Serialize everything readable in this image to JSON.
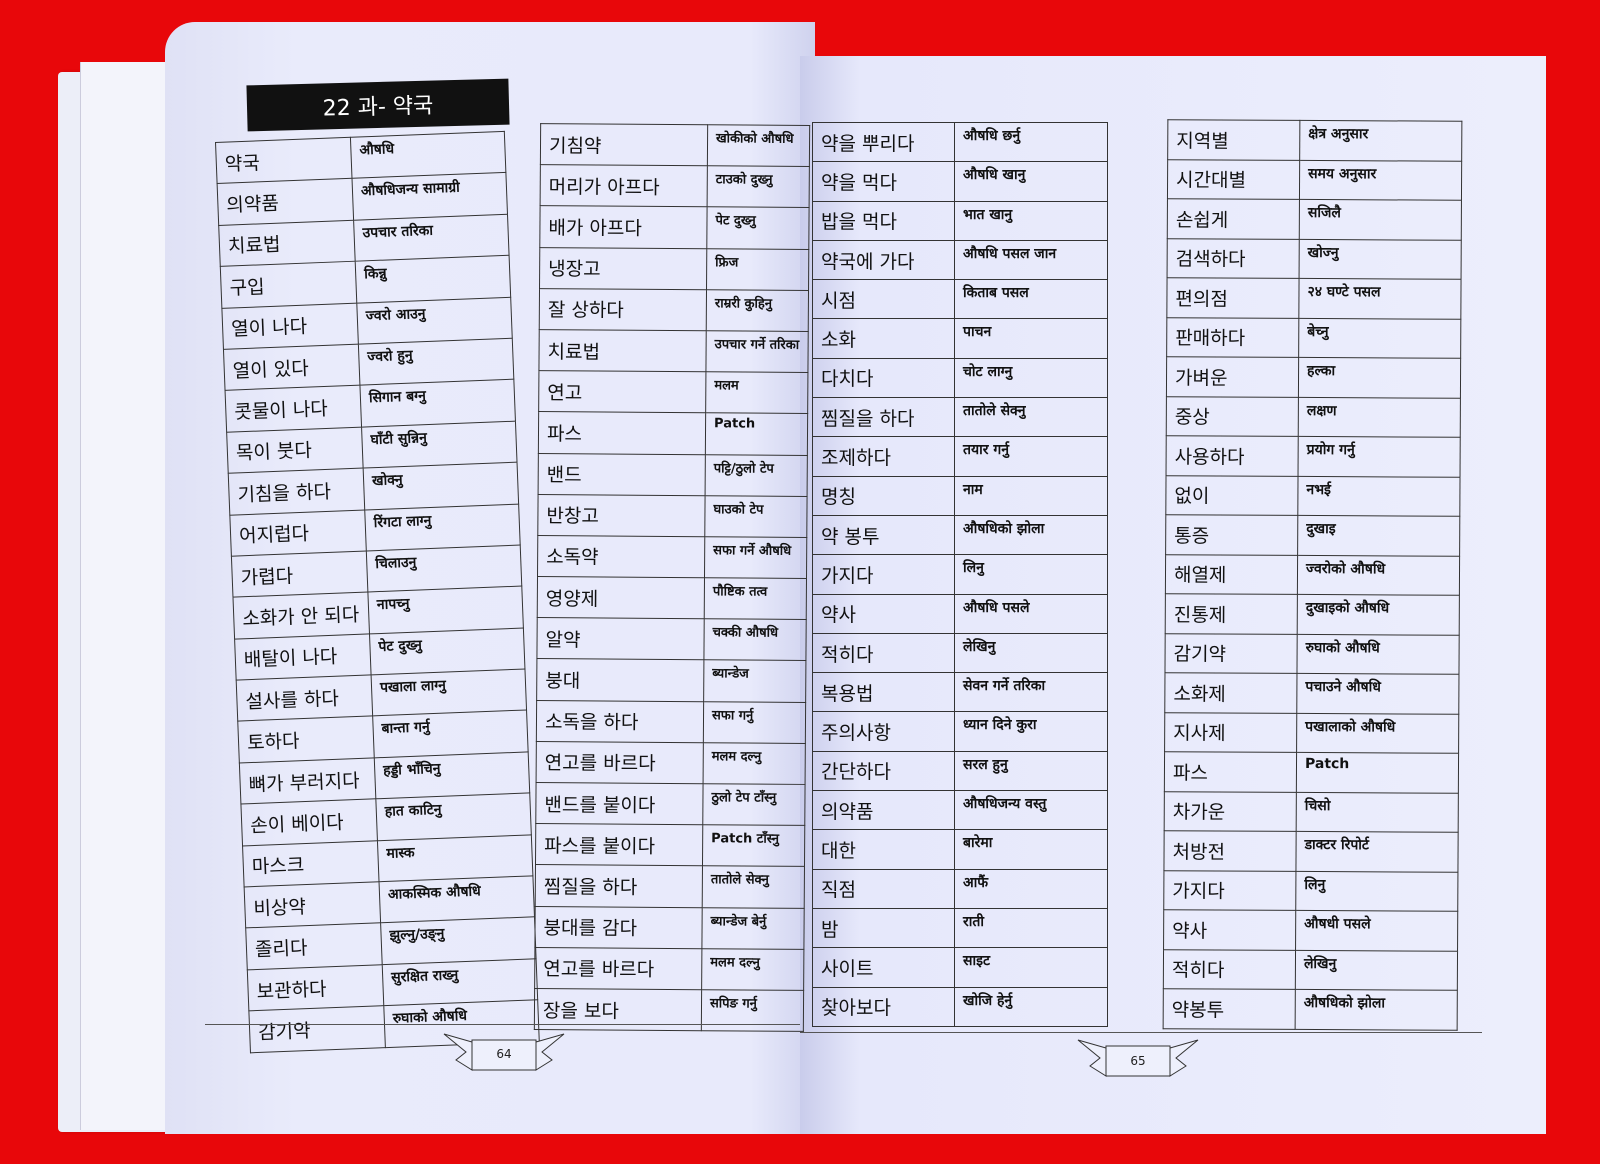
{
  "lesson_title": "22 과- 약국",
  "page_numbers": {
    "left": "64",
    "right": "65"
  },
  "colors": {
    "background": "#e8070a",
    "page": "#e6e8fb",
    "title_bar": "#111111"
  },
  "tables": [
    {
      "rows": [
        [
          "약국",
          "औषधि"
        ],
        [
          "의약품",
          "औषधिजन्य सामाग्री"
        ],
        [
          "치료법",
          "उपचार तरिका"
        ],
        [
          "구입",
          "किन्नु"
        ],
        [
          "열이 나다",
          "ज्वरो आउनु"
        ],
        [
          "열이 있다",
          "ज्वरो हुनु"
        ],
        [
          "콧물이 나다",
          "सिगान बग्नु"
        ],
        [
          "목이 붓다",
          "घाँटी सुन्निनु"
        ],
        [
          "기침을 하다",
          "खोक्नु"
        ],
        [
          "어지럽다",
          "रिंगटा लाग्नु"
        ],
        [
          "가렵다",
          "चिलाउनु"
        ],
        [
          "소화가 안 되다",
          "नापच्नु"
        ],
        [
          "배탈이 나다",
          "पेट दुख्नु"
        ],
        [
          "설사를 하다",
          "पखाला लाग्नु"
        ],
        [
          "토하다",
          "बान्ता गर्नु"
        ],
        [
          "뼈가 부러지다",
          "हड्डी भाँचिनु"
        ],
        [
          "손이 베이다",
          "हात काटिनु"
        ],
        [
          "마스크",
          "मास्क"
        ],
        [
          "비상약",
          "आकस्मिक औषधि"
        ],
        [
          "졸리다",
          "झुल्नु/उङ्नु"
        ],
        [
          "보관하다",
          "सुरक्षित राख्नु"
        ],
        [
          "감기약",
          "रुघाको औषधि"
        ]
      ]
    },
    {
      "rows": [
        [
          "기침약",
          "खोकीको औषधि"
        ],
        [
          "머리가 아프다",
          "टाउको दुख्नु"
        ],
        [
          "배가 아프다",
          "पेट दुख्नु"
        ],
        [
          "냉장고",
          "फ्रिज"
        ],
        [
          "잘 상하다",
          "राम्ररी कुहिनु"
        ],
        [
          "치료법",
          "उपचार गर्ने तरिका"
        ],
        [
          "연고",
          "मलम"
        ],
        [
          "파스",
          "Patch"
        ],
        [
          "밴드",
          "पट्टि/ठुलो टेप"
        ],
        [
          "반창고",
          "घाउको टेप"
        ],
        [
          "소독약",
          "सफा गर्ने औषधि"
        ],
        [
          "영양제",
          "पौष्टिक तत्व"
        ],
        [
          "알약",
          "चक्की औषधि"
        ],
        [
          "붕대",
          "ब्यान्डेज"
        ],
        [
          "소독을 하다",
          "सफा गर्नु"
        ],
        [
          "연고를 바르다",
          "मलम दल्नु"
        ],
        [
          "밴드를 붙이다",
          "ठुलो टेप टाँस्नु"
        ],
        [
          "파스를 붙이다",
          "Patch टाँस्नु"
        ],
        [
          "찜질을 하다",
          "तातोले सेक्नु"
        ],
        [
          "붕대를 감다",
          "ब्यान्डेज बेर्नु"
        ],
        [
          "연고를 바르다",
          "मलम दल्नु"
        ],
        [
          "장을 보다",
          "सपिङ गर्नु"
        ]
      ]
    },
    {
      "rows": [
        [
          "약을 뿌리다",
          "औषधि छर्नु"
        ],
        [
          "약을 먹다",
          "औषधि खानु"
        ],
        [
          "밥을 먹다",
          "भात खानु"
        ],
        [
          "약국에 가다",
          "औषधि पसल जान"
        ],
        [
          "시점",
          "किताब पसल"
        ],
        [
          "소화",
          "पाचन"
        ],
        [
          "다치다",
          "चोट लाग्नु"
        ],
        [
          "찜질을 하다",
          "तातोले सेक्नु"
        ],
        [
          "조제하다",
          "तयार गर्नु"
        ],
        [
          "명칭",
          "नाम"
        ],
        [
          "약 봉투",
          "औषधिको झोला"
        ],
        [
          "가지다",
          "लिनु"
        ],
        [
          "약사",
          "औषधि पसले"
        ],
        [
          "적히다",
          "लेखिनु"
        ],
        [
          "복용법",
          "सेवन गर्ने तरिका"
        ],
        [
          "주의사항",
          "ध्यान दिने कुरा"
        ],
        [
          "간단하다",
          "सरल हुनु"
        ],
        [
          "의약품",
          "औषधिजन्य वस्तु"
        ],
        [
          "대한",
          "बारेमा"
        ],
        [
          "직점",
          "आफैं"
        ],
        [
          "밤",
          "राती"
        ],
        [
          "사이트",
          "साइट"
        ],
        [
          "찾아보다",
          "खोजि हेर्नु"
        ]
      ]
    },
    {
      "rows": [
        [
          "지역별",
          "क्षेत्र अनुसार"
        ],
        [
          "시간대별",
          "समय अनुसार"
        ],
        [
          "손쉽게",
          "सजिलै"
        ],
        [
          "검색하다",
          "खोज्नु"
        ],
        [
          "편의점",
          "२४ घण्टे पसल"
        ],
        [
          "판매하다",
          "बेच्नु"
        ],
        [
          "가벼운",
          "हल्का"
        ],
        [
          "중상",
          "लक्षण"
        ],
        [
          "사용하다",
          "प्रयोग गर्नु"
        ],
        [
          "없이",
          "नभई"
        ],
        [
          "통증",
          "दुखाइ"
        ],
        [
          "해열제",
          "ज्वरोको औषधि"
        ],
        [
          "진통제",
          "दुखाइको औषधि"
        ],
        [
          "감기약",
          "रुघाको औषधि"
        ],
        [
          "소화제",
          "पचाउने औषधि"
        ],
        [
          "지사제",
          "पखालाको औषधि"
        ],
        [
          "파스",
          "Patch"
        ],
        [
          "차가운",
          "चिसो"
        ],
        [
          "처방전",
          "डाक्टर रिपोर्ट"
        ],
        [
          "가지다",
          "लिनु"
        ],
        [
          "약사",
          "औषधी पसले"
        ],
        [
          "적히다",
          "लेखिनु"
        ],
        [
          "약봉투",
          "औषधिको झोला"
        ]
      ]
    }
  ]
}
